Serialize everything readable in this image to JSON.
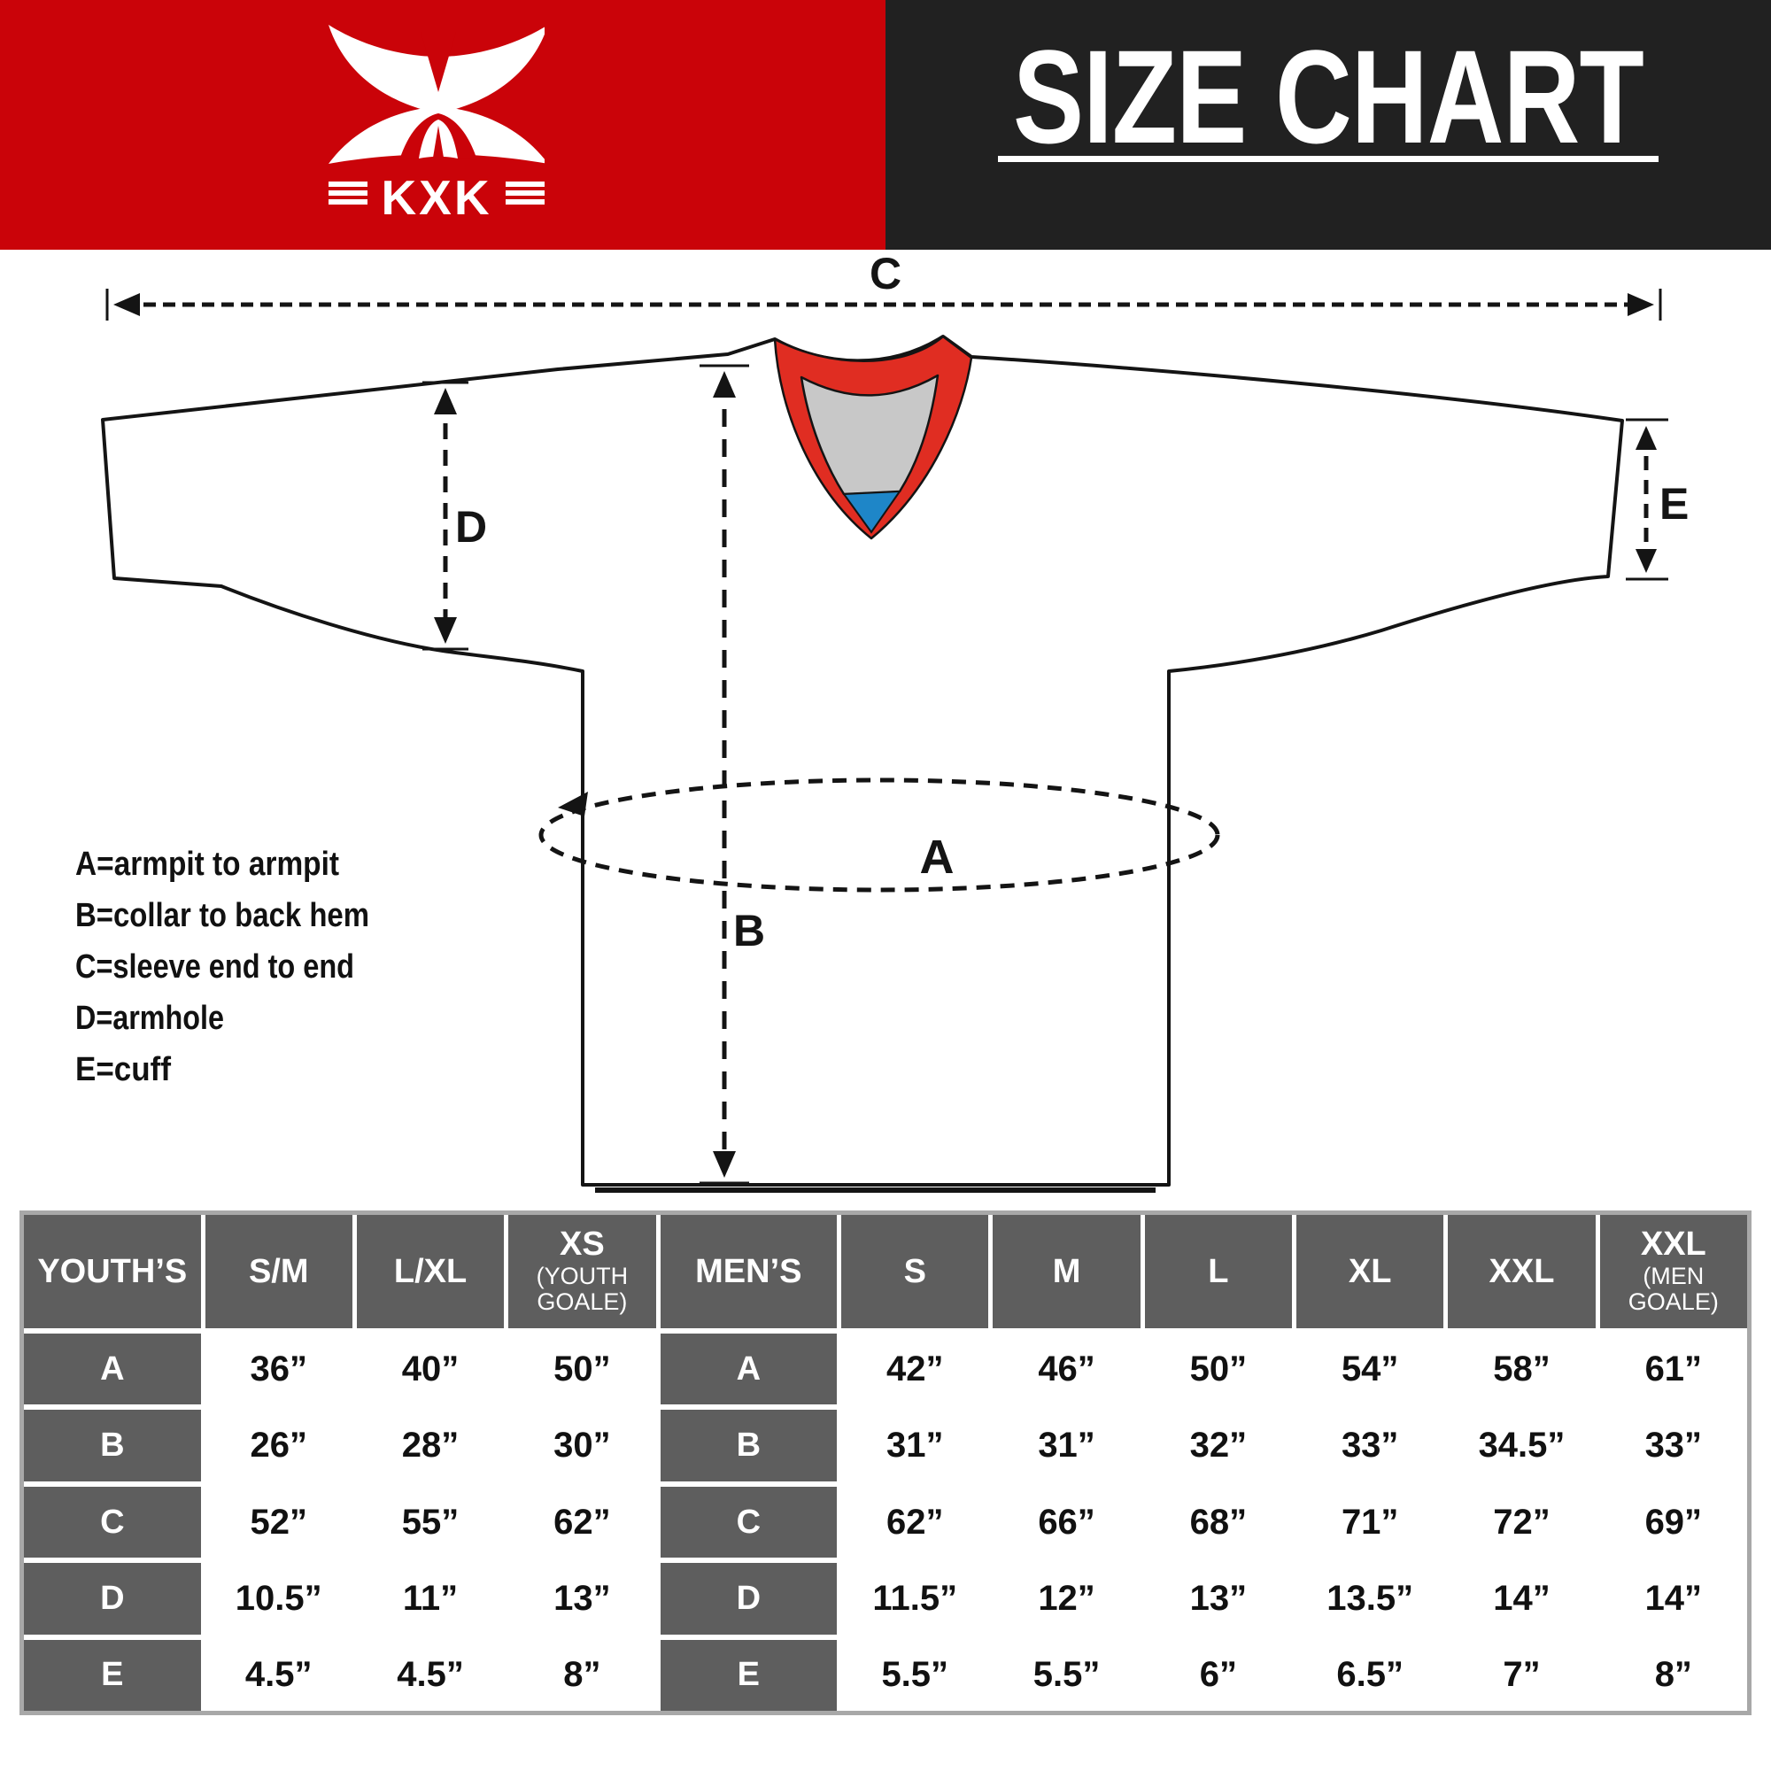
{
  "header": {
    "brand": "KXK",
    "title": "SIZE CHART",
    "colors": {
      "red": "#ca0309",
      "black": "#212121"
    }
  },
  "diagram": {
    "measure_labels": {
      "a": "A",
      "b": "B",
      "c": "C",
      "d": "D",
      "e": "E"
    },
    "legend": {
      "a": "A=armpit to armpit",
      "b": "B=collar to back hem",
      "c": "C=sleeve end to end",
      "d": "D=armhole",
      "e": "E=cuff"
    },
    "colors": {
      "collar_red": "#e02d22",
      "collar_gray": "#c8c8c8",
      "collar_blue": "#1e86c8",
      "outline": "#141414"
    }
  },
  "table": {
    "header": [
      {
        "text": "YOUTH’S"
      },
      {
        "text": "S/M"
      },
      {
        "text": "L/XL"
      },
      {
        "text": "XS",
        "sub": "(YOUTH GOALE)"
      },
      {
        "text": "MEN’S"
      },
      {
        "text": "S"
      },
      {
        "text": "M"
      },
      {
        "text": "L"
      },
      {
        "text": "XL"
      },
      {
        "text": "XXL"
      },
      {
        "text": "XXL",
        "sub": "(MEN GOALE)"
      }
    ],
    "rows": [
      {
        "label": "A",
        "youth": [
          "36”",
          "40”",
          "50”"
        ],
        "men": [
          "42”",
          "46”",
          "50”",
          "54”",
          "58”",
          "61”"
        ]
      },
      {
        "label": "B",
        "youth": [
          "26”",
          "28”",
          "30”"
        ],
        "men": [
          "31”",
          "31”",
          "32”",
          "33”",
          "34.5”",
          "33”"
        ]
      },
      {
        "label": "C",
        "youth": [
          "52”",
          "55”",
          "62”"
        ],
        "men": [
          "62”",
          "66”",
          "68”",
          "71”",
          "72”",
          "69”"
        ]
      },
      {
        "label": "D",
        "youth": [
          "10.5”",
          "11”",
          "13”"
        ],
        "men": [
          "11.5”",
          "12”",
          "13”",
          "13.5”",
          "14”",
          "14”"
        ]
      },
      {
        "label": "E",
        "youth": [
          "4.5”",
          "4.5”",
          "8”"
        ],
        "men": [
          "5.5”",
          "5.5”",
          "6”",
          "6.5”",
          "7”",
          "8”"
        ]
      }
    ]
  }
}
